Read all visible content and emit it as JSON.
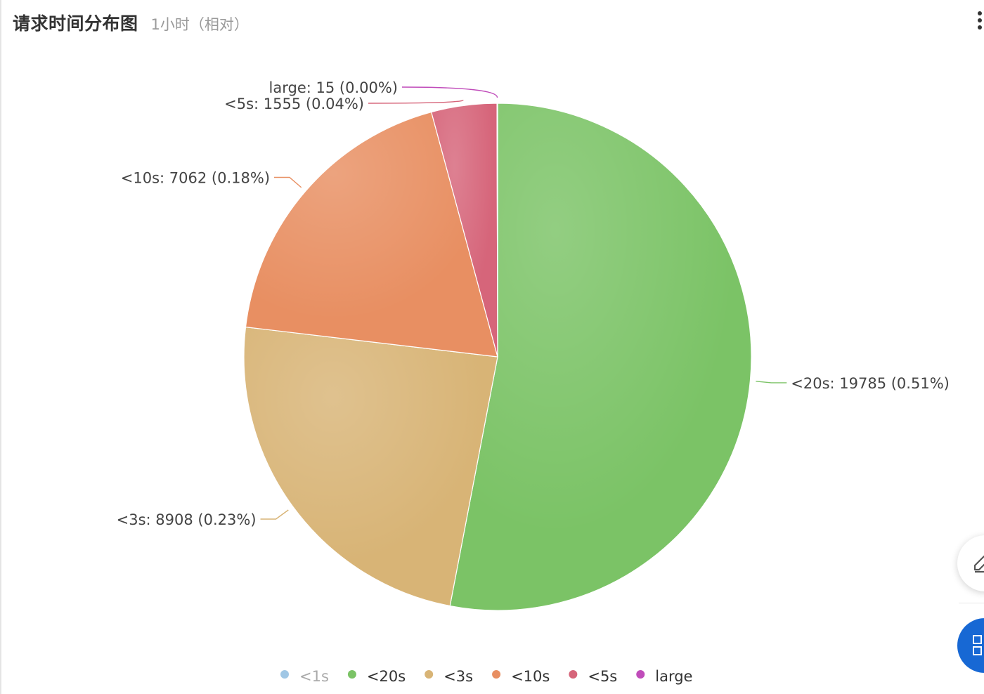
{
  "header": {
    "title": "请求时间分布图",
    "subtitle": "1小时（相对）"
  },
  "icons": {
    "more": "more-vertical-icon",
    "edit": "edit-icon",
    "grid": "grid-icon"
  },
  "colors": {
    "<1s": "#8fbde0",
    "<20s": "#7bc366",
    "<3s": "#d8b476",
    "<10s": "#e88f62",
    "<5s": "#d6657a",
    "large": "#c04cba"
  },
  "chart_data": {
    "type": "pie",
    "title": "请求时间分布图",
    "slices": [
      {
        "name": "<1s",
        "value": 0,
        "label": "",
        "legend_dimmed": true
      },
      {
        "name": "<20s",
        "value": 19785,
        "label": "<20s:  19785 (0.51%)",
        "legend_dimmed": false
      },
      {
        "name": "<3s",
        "value": 8908,
        "label": "<3s:  8908 (0.23%)",
        "legend_dimmed": false
      },
      {
        "name": "<10s",
        "value": 7062,
        "label": "<10s:  7062 (0.18%)",
        "legend_dimmed": false
      },
      {
        "name": "<5s",
        "value": 1555,
        "label": "<5s:  1555 (0.04%)",
        "legend_dimmed": false
      },
      {
        "name": "large",
        "value": 15,
        "label": "large:  15 (0.00%)",
        "legend_dimmed": false
      }
    ],
    "legend_position": "bottom",
    "label_position": "outside"
  }
}
